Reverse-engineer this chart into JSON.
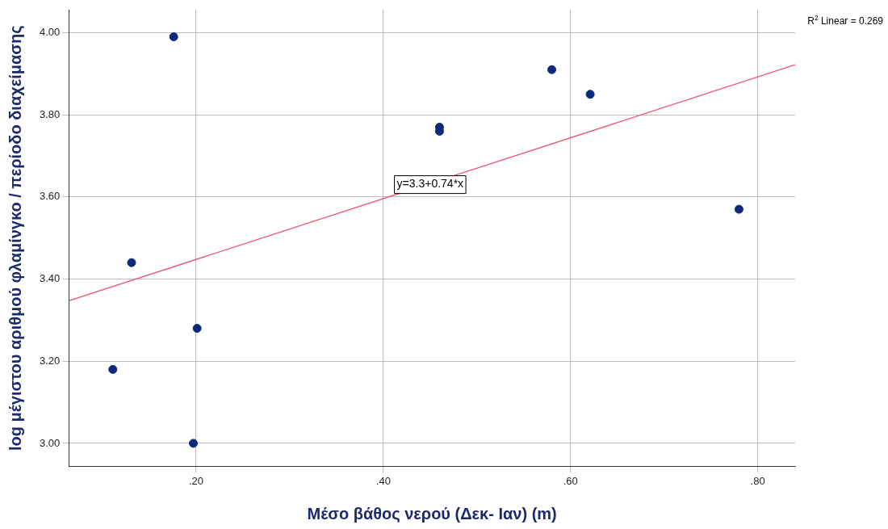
{
  "chart_data": {
    "type": "scatter",
    "xlabel": "Μέσο βάθος νερού (Δεκ- Ιαν) (m)",
    "ylabel": "log μέγιστου αριθμού φλαμίνγκο / περίοδο διαχείμασης",
    "x": [
      0.111,
      0.131,
      0.176,
      0.201,
      0.197,
      0.46,
      0.46,
      0.58,
      0.621,
      0.78
    ],
    "series": [
      {
        "color": "#0d2a78",
        "values": [
          3.18,
          3.44,
          3.99,
          3.28,
          3.0,
          3.77,
          3.76,
          3.91,
          3.85,
          3.57
        ]
      },
      {
        "type": "line",
        "color": "#f0506e",
        "x": [
          0.064,
          0.84
        ],
        "values": [
          3.347,
          3.922
        ],
        "marker": "none"
      }
    ],
    "xlim": [
      0.064,
      0.84
    ],
    "ylim": [
      2.944,
      4.056
    ],
    "xticks": [
      {
        "value": 0.2,
        "label": ".20"
      },
      {
        "value": 0.4,
        "label": ".40"
      },
      {
        "value": 0.6,
        "label": ".60"
      },
      {
        "value": 0.8,
        "label": ".80"
      }
    ],
    "yticks": [
      {
        "value": 3.0,
        "label": "3.00"
      },
      {
        "value": 3.2,
        "label": "3.20"
      },
      {
        "value": 3.4,
        "label": "3.40"
      },
      {
        "value": 3.6,
        "label": "3.60"
      },
      {
        "value": 3.8,
        "label": "3.80"
      },
      {
        "value": 4.0,
        "label": "4.00"
      }
    ],
    "grid": true,
    "legend": false,
    "marker": "circle",
    "annotations": [
      "R$^{2}$ Linear = 0.269",
      {
        "text": "y=3.3+0.74*x",
        "x": 0.45,
        "y": 3.63
      }
    ]
  }
}
